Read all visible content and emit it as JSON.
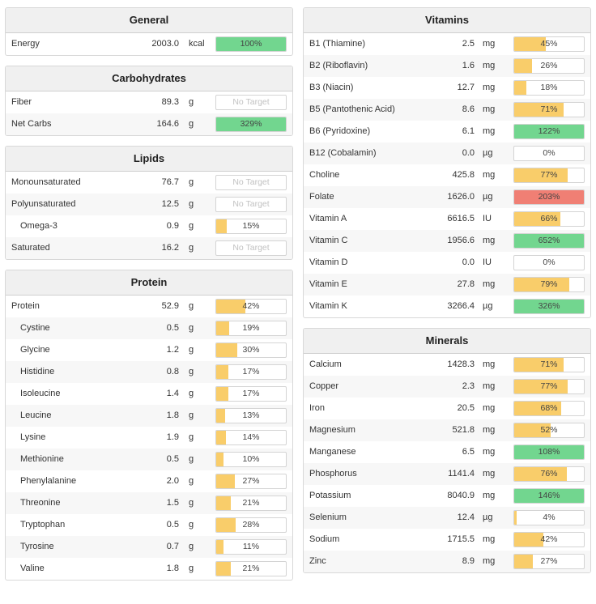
{
  "colors": {
    "yellow": "#f9cd6a",
    "green": "#72d68f",
    "red": "#f07f74"
  },
  "left_panels": [
    {
      "title": "General",
      "rows": [
        {
          "name": "Energy",
          "amount": "2003.0",
          "unit": "kcal",
          "pct": "100%",
          "fill": 1.0,
          "color": "green"
        }
      ]
    },
    {
      "title": "Carbohydrates",
      "rows": [
        {
          "name": "Fiber",
          "amount": "89.3",
          "unit": "g",
          "pct": "No Target",
          "fill": 0,
          "color": "none"
        },
        {
          "name": "Net Carbs",
          "amount": "164.6",
          "unit": "g",
          "pct": "329%",
          "fill": 1.0,
          "color": "green"
        }
      ]
    },
    {
      "title": "Lipids",
      "rows": [
        {
          "name": "Monounsaturated",
          "amount": "76.7",
          "unit": "g",
          "pct": "No Target",
          "fill": 0,
          "color": "none"
        },
        {
          "name": "Polyunsaturated",
          "amount": "12.5",
          "unit": "g",
          "pct": "No Target",
          "fill": 0,
          "color": "none"
        },
        {
          "name": "Omega-3",
          "amount": "0.9",
          "unit": "g",
          "pct": "15%",
          "fill": 0.15,
          "color": "yellow",
          "sub": true
        },
        {
          "name": "Saturated",
          "amount": "16.2",
          "unit": "g",
          "pct": "No Target",
          "fill": 0,
          "color": "none"
        }
      ]
    },
    {
      "title": "Protein",
      "rows": [
        {
          "name": "Protein",
          "amount": "52.9",
          "unit": "g",
          "pct": "42%",
          "fill": 0.42,
          "color": "yellow"
        },
        {
          "name": "Cystine",
          "amount": "0.5",
          "unit": "g",
          "pct": "19%",
          "fill": 0.19,
          "color": "yellow",
          "sub": true
        },
        {
          "name": "Glycine",
          "amount": "1.2",
          "unit": "g",
          "pct": "30%",
          "fill": 0.3,
          "color": "yellow",
          "sub": true
        },
        {
          "name": "Histidine",
          "amount": "0.8",
          "unit": "g",
          "pct": "17%",
          "fill": 0.17,
          "color": "yellow",
          "sub": true
        },
        {
          "name": "Isoleucine",
          "amount": "1.4",
          "unit": "g",
          "pct": "17%",
          "fill": 0.17,
          "color": "yellow",
          "sub": true
        },
        {
          "name": "Leucine",
          "amount": "1.8",
          "unit": "g",
          "pct": "13%",
          "fill": 0.13,
          "color": "yellow",
          "sub": true
        },
        {
          "name": "Lysine",
          "amount": "1.9",
          "unit": "g",
          "pct": "14%",
          "fill": 0.14,
          "color": "yellow",
          "sub": true
        },
        {
          "name": "Methionine",
          "amount": "0.5",
          "unit": "g",
          "pct": "10%",
          "fill": 0.1,
          "color": "yellow",
          "sub": true
        },
        {
          "name": "Phenylalanine",
          "amount": "2.0",
          "unit": "g",
          "pct": "27%",
          "fill": 0.27,
          "color": "yellow",
          "sub": true
        },
        {
          "name": "Threonine",
          "amount": "1.5",
          "unit": "g",
          "pct": "21%",
          "fill": 0.21,
          "color": "yellow",
          "sub": true
        },
        {
          "name": "Tryptophan",
          "amount": "0.5",
          "unit": "g",
          "pct": "28%",
          "fill": 0.28,
          "color": "yellow",
          "sub": true
        },
        {
          "name": "Tyrosine",
          "amount": "0.7",
          "unit": "g",
          "pct": "11%",
          "fill": 0.11,
          "color": "yellow",
          "sub": true
        },
        {
          "name": "Valine",
          "amount": "1.8",
          "unit": "g",
          "pct": "21%",
          "fill": 0.21,
          "color": "yellow",
          "sub": true
        }
      ]
    }
  ],
  "right_panels": [
    {
      "title": "Vitamins",
      "rows": [
        {
          "name": "B1 (Thiamine)",
          "amount": "2.5",
          "unit": "mg",
          "pct": "45%",
          "fill": 0.45,
          "color": "yellow"
        },
        {
          "name": "B2 (Riboflavin)",
          "amount": "1.6",
          "unit": "mg",
          "pct": "26%",
          "fill": 0.26,
          "color": "yellow"
        },
        {
          "name": "B3 (Niacin)",
          "amount": "12.7",
          "unit": "mg",
          "pct": "18%",
          "fill": 0.18,
          "color": "yellow"
        },
        {
          "name": "B5 (Pantothenic Acid)",
          "amount": "8.6",
          "unit": "mg",
          "pct": "71%",
          "fill": 0.71,
          "color": "yellow"
        },
        {
          "name": "B6 (Pyridoxine)",
          "amount": "6.1",
          "unit": "mg",
          "pct": "122%",
          "fill": 1.0,
          "color": "green"
        },
        {
          "name": "B12 (Cobalamin)",
          "amount": "0.0",
          "unit": "µg",
          "pct": "0%",
          "fill": 0,
          "color": "yellow"
        },
        {
          "name": "Choline",
          "amount": "425.8",
          "unit": "mg",
          "pct": "77%",
          "fill": 0.77,
          "color": "yellow"
        },
        {
          "name": "Folate",
          "amount": "1626.0",
          "unit": "µg",
          "pct": "203%",
          "fill": 1.0,
          "color": "red"
        },
        {
          "name": "Vitamin A",
          "amount": "6616.5",
          "unit": "IU",
          "pct": "66%",
          "fill": 0.66,
          "color": "yellow"
        },
        {
          "name": "Vitamin C",
          "amount": "1956.6",
          "unit": "mg",
          "pct": "652%",
          "fill": 1.0,
          "color": "green"
        },
        {
          "name": "Vitamin D",
          "amount": "0.0",
          "unit": "IU",
          "pct": "0%",
          "fill": 0,
          "color": "yellow"
        },
        {
          "name": "Vitamin E",
          "amount": "27.8",
          "unit": "mg",
          "pct": "79%",
          "fill": 0.79,
          "color": "yellow"
        },
        {
          "name": "Vitamin K",
          "amount": "3266.4",
          "unit": "µg",
          "pct": "326%",
          "fill": 1.0,
          "color": "green"
        }
      ]
    },
    {
      "title": "Minerals",
      "rows": [
        {
          "name": "Calcium",
          "amount": "1428.3",
          "unit": "mg",
          "pct": "71%",
          "fill": 0.71,
          "color": "yellow"
        },
        {
          "name": "Copper",
          "amount": "2.3",
          "unit": "mg",
          "pct": "77%",
          "fill": 0.77,
          "color": "yellow"
        },
        {
          "name": "Iron",
          "amount": "20.5",
          "unit": "mg",
          "pct": "68%",
          "fill": 0.68,
          "color": "yellow"
        },
        {
          "name": "Magnesium",
          "amount": "521.8",
          "unit": "mg",
          "pct": "52%",
          "fill": 0.52,
          "color": "yellow"
        },
        {
          "name": "Manganese",
          "amount": "6.5",
          "unit": "mg",
          "pct": "108%",
          "fill": 1.0,
          "color": "green"
        },
        {
          "name": "Phosphorus",
          "amount": "1141.4",
          "unit": "mg",
          "pct": "76%",
          "fill": 0.76,
          "color": "yellow"
        },
        {
          "name": "Potassium",
          "amount": "8040.9",
          "unit": "mg",
          "pct": "146%",
          "fill": 1.0,
          "color": "green"
        },
        {
          "name": "Selenium",
          "amount": "12.4",
          "unit": "µg",
          "pct": "4%",
          "fill": 0.04,
          "color": "yellow"
        },
        {
          "name": "Sodium",
          "amount": "1715.5",
          "unit": "mg",
          "pct": "42%",
          "fill": 0.42,
          "color": "yellow"
        },
        {
          "name": "Zinc",
          "amount": "8.9",
          "unit": "mg",
          "pct": "27%",
          "fill": 0.27,
          "color": "yellow"
        }
      ]
    }
  ]
}
